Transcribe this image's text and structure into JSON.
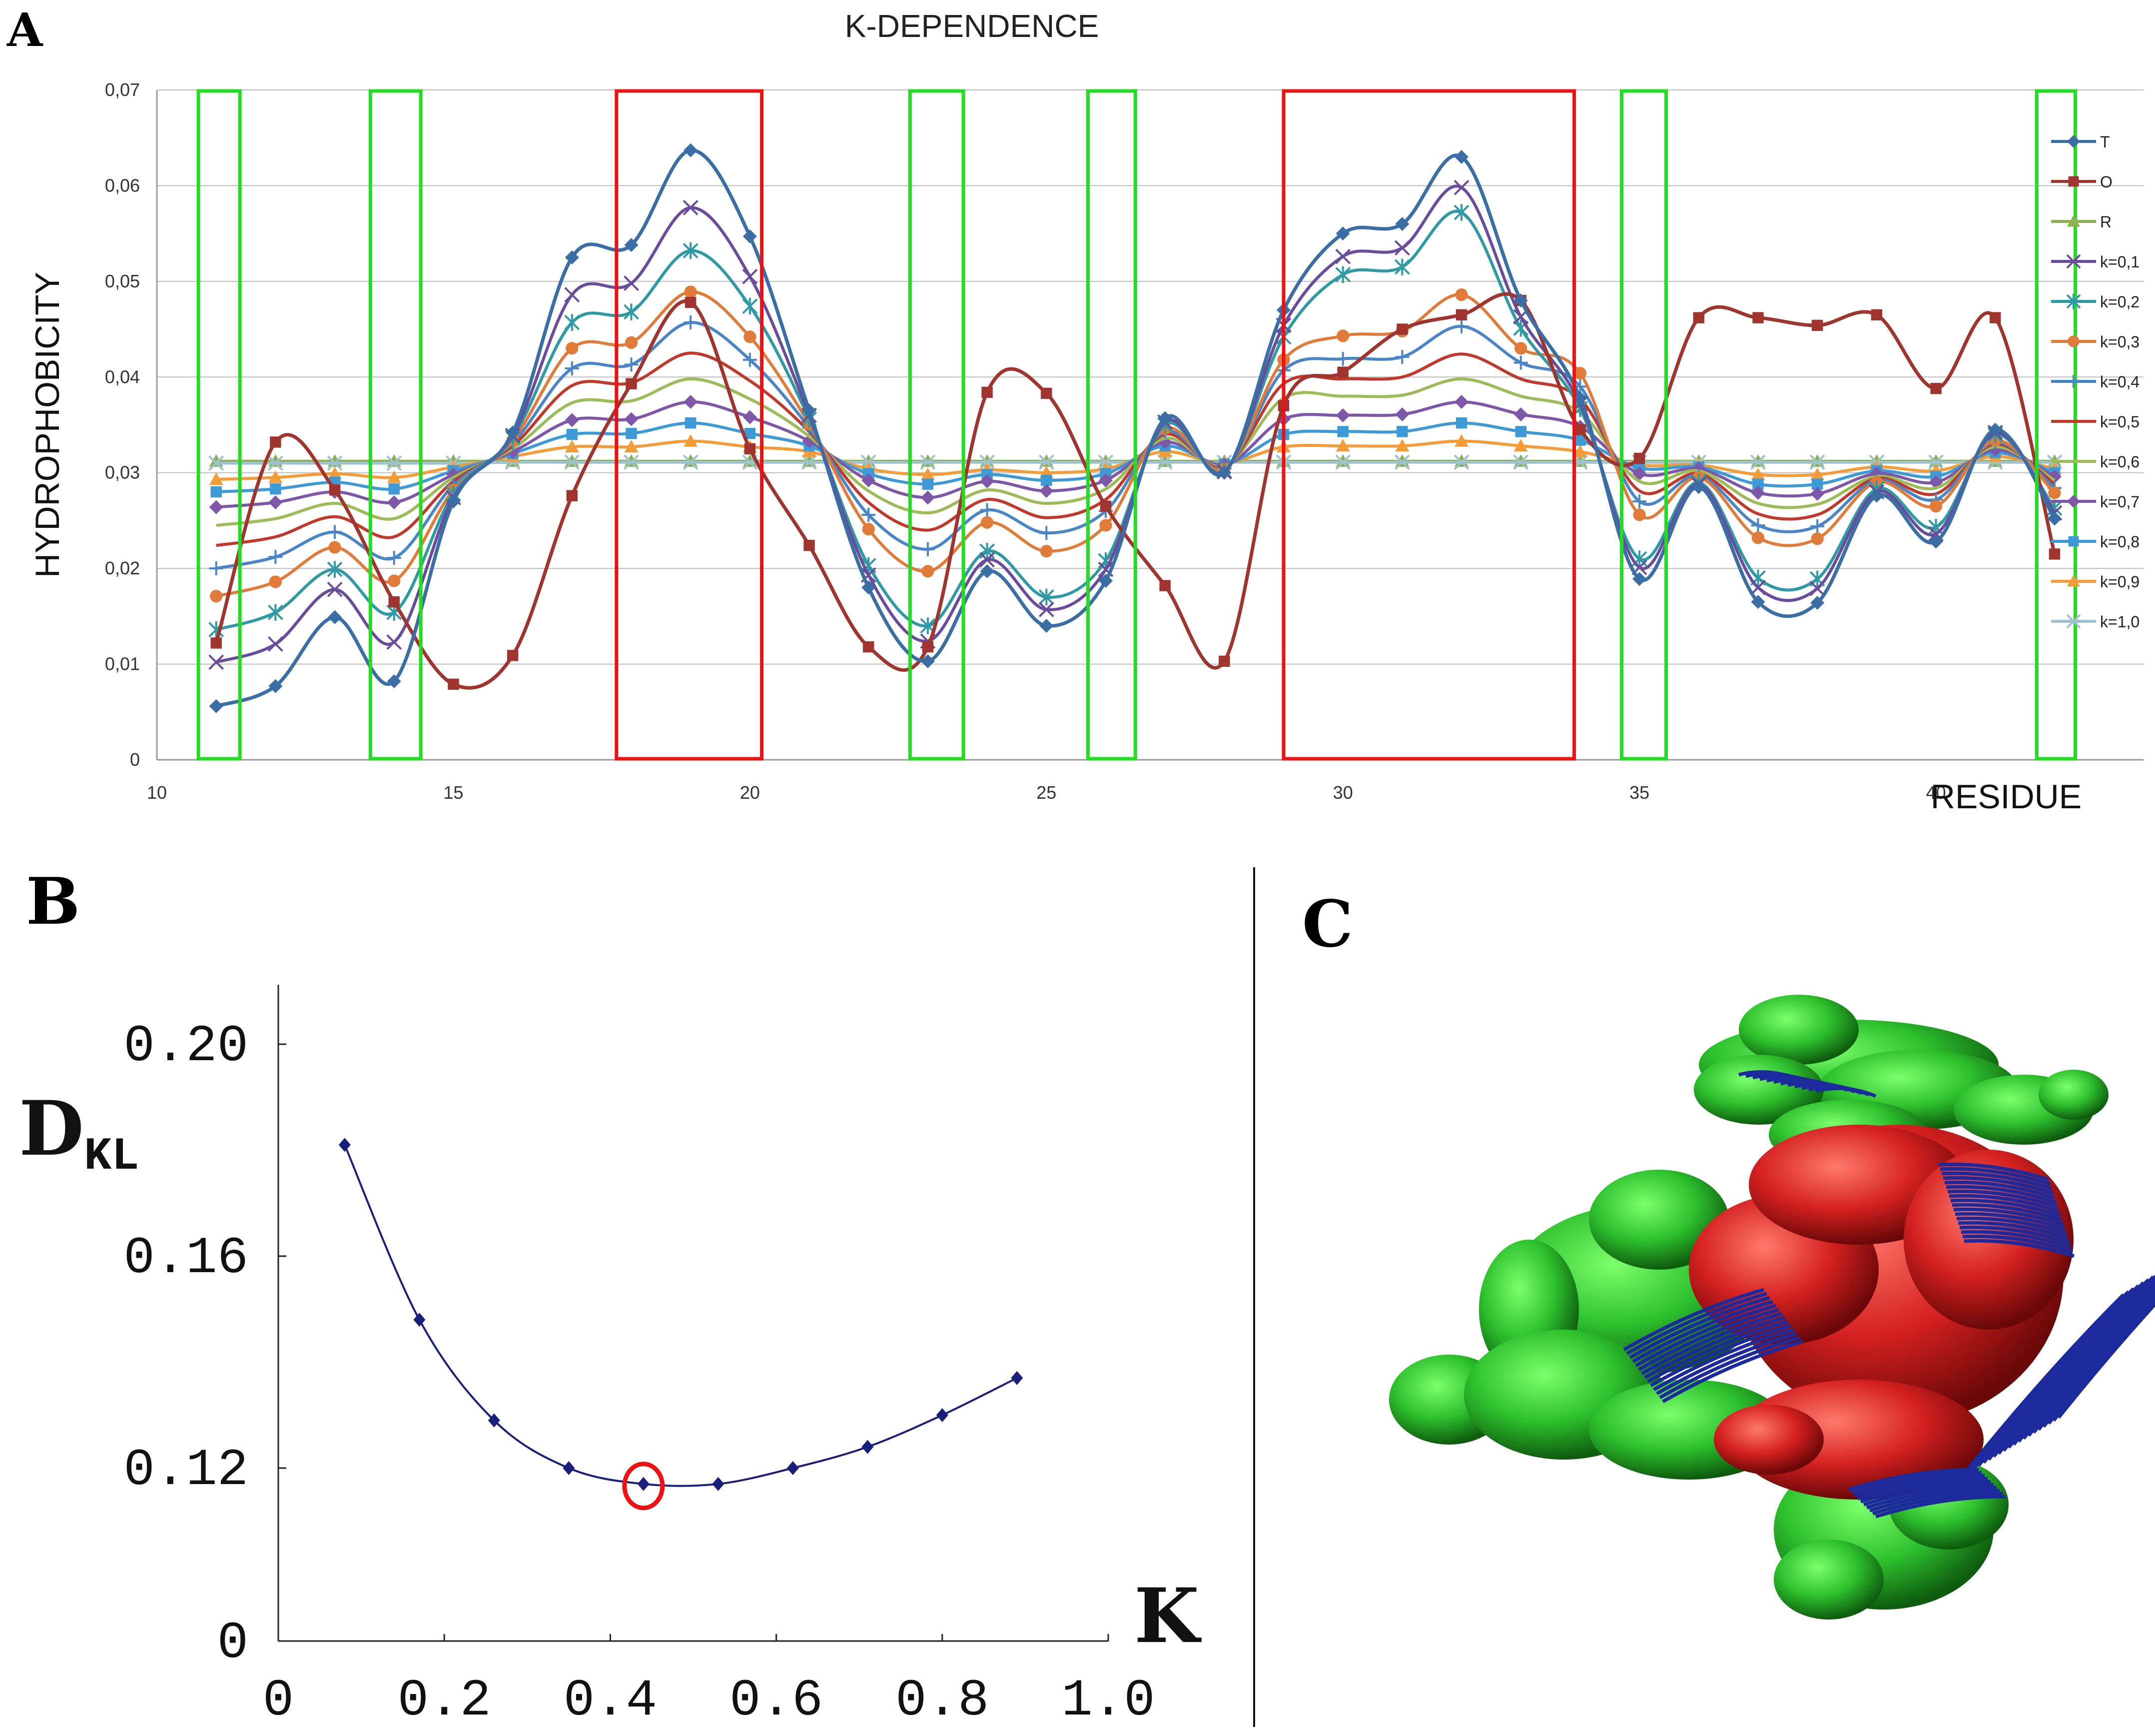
{
  "panels": {
    "a": {
      "letter": "A"
    },
    "b": {
      "letter": "B"
    },
    "c": {
      "letter": "C"
    }
  },
  "chart_data": [
    {
      "id": "k-dependence",
      "type": "line",
      "title": "K-DEPENDENCE",
      "xlabel": "RESIDUE",
      "ylabel": "HYDROPHOBICITY",
      "xlim": [
        10,
        43.5
      ],
      "ylim": [
        0,
        0.07
      ],
      "xticks": [
        10,
        15,
        20,
        25,
        30,
        35,
        40
      ],
      "xtick_labels": [
        "10",
        "15",
        "20",
        "25",
        "30",
        "35",
        "40"
      ],
      "yticks": [
        0,
        0.01,
        0.02,
        0.03,
        0.04,
        0.05,
        0.06,
        0.07
      ],
      "ytick_labels": [
        "0",
        "0,01",
        "0,02",
        "0,03",
        "0,04",
        "0,05",
        "0,06",
        "0,07"
      ],
      "grid": true,
      "legend_position": "right",
      "x": [
        11,
        12,
        13,
        14,
        15,
        16,
        17,
        18,
        19,
        20,
        21,
        22,
        23,
        24,
        25,
        26,
        27,
        28,
        29,
        30,
        31,
        32,
        33,
        34,
        35,
        36,
        37,
        38,
        39,
        40,
        41,
        42
      ],
      "series": [
        {
          "name": "T",
          "color": "#3a6ea5",
          "marker": "diamond",
          "values": [
            0.0056,
            0.0077,
            0.0149,
            0.0082,
            0.027,
            0.0342,
            0.0525,
            0.0538,
            0.0637,
            0.0547,
            0.0365,
            0.018,
            0.0103,
            0.0197,
            0.014,
            0.0187,
            0.0357,
            0.03,
            0.047,
            0.055,
            0.056,
            0.063,
            0.048,
            0.0378,
            0.0189,
            0.0285,
            0.0165,
            0.0164,
            0.0276,
            0.0228,
            0.0345,
            0.0252
          ]
        },
        {
          "name": "O",
          "color": "#a0342e",
          "marker": "square",
          "values": [
            0.0122,
            0.0332,
            0.0282,
            0.0165,
            0.0079,
            0.0109,
            0.0276,
            0.0393,
            0.0478,
            0.0325,
            0.0224,
            0.0118,
            0.0118,
            0.0384,
            0.0383,
            0.0265,
            0.0182,
            0.0103,
            0.037,
            0.0405,
            0.045,
            0.0465,
            0.048,
            0.0345,
            0.0315,
            0.0462,
            0.0462,
            0.0454,
            0.0465,
            0.0388,
            0.0462,
            0.0215
          ]
        },
        {
          "name": "R",
          "color": "#8db052",
          "marker": "triangle",
          "values": [
            0.0312,
            0.0312,
            0.0312,
            0.0312,
            0.0312,
            0.0312,
            0.0312,
            0.0312,
            0.0312,
            0.0312,
            0.0312,
            0.0312,
            0.0312,
            0.0312,
            0.0312,
            0.0312,
            0.0312,
            0.0312,
            0.0312,
            0.0312,
            0.0312,
            0.0312,
            0.0312,
            0.0312,
            0.0312,
            0.0312,
            0.0312,
            0.0312,
            0.0312,
            0.0312,
            0.0312,
            0.0312
          ]
        },
        {
          "name": "k=0,1",
          "color": "#6a4c9c",
          "marker": "x",
          "values": [
            0.0102,
            0.0121,
            0.0178,
            0.0123,
            0.0274,
            0.0339,
            0.0486,
            0.0498,
            0.0577,
            0.0505,
            0.036,
            0.0193,
            0.0124,
            0.0209,
            0.0157,
            0.0199,
            0.0353,
            0.0301,
            0.0454,
            0.0526,
            0.0535,
            0.0598,
            0.0463,
            0.0372,
            0.0201,
            0.0288,
            0.018,
            0.0179,
            0.028,
            0.0236,
            0.0342,
            0.0258
          ]
        },
        {
          "name": "k=0,2",
          "color": "#2f9aa3",
          "marker": "star",
          "values": [
            0.0136,
            0.0154,
            0.0199,
            0.0154,
            0.0278,
            0.0337,
            0.0457,
            0.0468,
            0.0532,
            0.0474,
            0.0356,
            0.0203,
            0.014,
            0.0218,
            0.017,
            0.0208,
            0.035,
            0.0302,
            0.0442,
            0.0507,
            0.0515,
            0.0572,
            0.0451,
            0.0367,
            0.021,
            0.029,
            0.019,
            0.0189,
            0.0283,
            0.0243,
            0.034,
            0.0263
          ]
        },
        {
          "name": "k=0,3",
          "color": "#e07b39",
          "marker": "circle",
          "values": [
            0.0171,
            0.0186,
            0.0222,
            0.0187,
            0.0282,
            0.0334,
            0.043,
            0.0436,
            0.0489,
            0.0442,
            0.0351,
            0.0241,
            0.0197,
            0.0248,
            0.0218,
            0.0245,
            0.0346,
            0.0304,
            0.0418,
            0.0443,
            0.0448,
            0.0486,
            0.043,
            0.0404,
            0.0256,
            0.0295,
            0.0232,
            0.0231,
            0.029,
            0.0265,
            0.0334,
            0.0279
          ]
        },
        {
          "name": "k=0,4",
          "color": "#4a86c7",
          "marker": "plus",
          "values": [
            0.02,
            0.0212,
            0.0238,
            0.0211,
            0.0287,
            0.0331,
            0.0409,
            0.0413,
            0.0457,
            0.0418,
            0.0347,
            0.0256,
            0.022,
            0.0261,
            0.0237,
            0.026,
            0.0343,
            0.0305,
            0.0407,
            0.0419,
            0.0421,
            0.0453,
            0.0415,
            0.039,
            0.027,
            0.0297,
            0.0245,
            0.0244,
            0.0292,
            0.0272,
            0.0332,
            0.0284
          ]
        },
        {
          "name": "k=0,5",
          "color": "#c0392b",
          "marker": "none",
          "values": [
            0.0224,
            0.0233,
            0.0254,
            0.0233,
            0.0291,
            0.0328,
            0.0391,
            0.0394,
            0.0425,
            0.0396,
            0.0343,
            0.0269,
            0.024,
            0.0272,
            0.0253,
            0.0272,
            0.034,
            0.0306,
            0.0393,
            0.0398,
            0.04,
            0.0424,
            0.0398,
            0.0377,
            0.0281,
            0.0299,
            0.0257,
            0.0256,
            0.0294,
            0.0278,
            0.033,
            0.0288
          ]
        },
        {
          "name": "k=0,6",
          "color": "#9cbb59",
          "marker": "none",
          "values": [
            0.0245,
            0.0252,
            0.0268,
            0.0252,
            0.0295,
            0.0325,
            0.0373,
            0.0375,
            0.0398,
            0.0377,
            0.0338,
            0.0281,
            0.0258,
            0.0282,
            0.0268,
            0.0283,
            0.0336,
            0.0307,
            0.0378,
            0.038,
            0.0381,
            0.0398,
            0.038,
            0.0363,
            0.0291,
            0.0302,
            0.0268,
            0.0267,
            0.0296,
            0.0284,
            0.0327,
            0.0292
          ]
        },
        {
          "name": "k=0,7",
          "color": "#7e57a8",
          "marker": "diamond",
          "values": [
            0.0264,
            0.0269,
            0.028,
            0.0269,
            0.0298,
            0.0322,
            0.0355,
            0.0356,
            0.0374,
            0.0358,
            0.0333,
            0.0292,
            0.0274,
            0.0291,
            0.0281,
            0.0292,
            0.0332,
            0.0308,
            0.0356,
            0.036,
            0.0361,
            0.0374,
            0.0361,
            0.0348,
            0.0299,
            0.0304,
            0.0279,
            0.0278,
            0.0299,
            0.029,
            0.0324,
            0.0296
          ]
        },
        {
          "name": "k=0,8",
          "color": "#3d9ad6",
          "marker": "square",
          "values": [
            0.028,
            0.0283,
            0.029,
            0.0283,
            0.0302,
            0.032,
            0.034,
            0.0341,
            0.0352,
            0.0341,
            0.0328,
            0.0299,
            0.0288,
            0.0298,
            0.0292,
            0.0299,
            0.0328,
            0.0309,
            0.034,
            0.0343,
            0.0343,
            0.0352,
            0.0343,
            0.0334,
            0.0305,
            0.0306,
            0.0288,
            0.0288,
            0.0302,
            0.0296,
            0.0321,
            0.03
          ]
        },
        {
          "name": "k=0,9",
          "color": "#f39c3a",
          "marker": "triangle",
          "values": [
            0.0293,
            0.0295,
            0.0299,
            0.0295,
            0.0306,
            0.0317,
            0.0327,
            0.0327,
            0.0333,
            0.0327,
            0.0322,
            0.0304,
            0.0298,
            0.0303,
            0.03,
            0.0304,
            0.0322,
            0.031,
            0.0327,
            0.0328,
            0.0328,
            0.0333,
            0.0328,
            0.0322,
            0.0308,
            0.0308,
            0.0298,
            0.0298,
            0.0306,
            0.0302,
            0.0317,
            0.0304
          ]
        },
        {
          "name": "k=1,0",
          "color": "#9ec3cf",
          "marker": "x",
          "values": [
            0.031,
            0.031,
            0.031,
            0.031,
            0.031,
            0.0311,
            0.0311,
            0.0311,
            0.0311,
            0.0311,
            0.0311,
            0.0311,
            0.0311,
            0.0311,
            0.0311,
            0.0311,
            0.0311,
            0.0311,
            0.0311,
            0.0311,
            0.0311,
            0.0311,
            0.0311,
            0.0311,
            0.0311,
            0.0311,
            0.0311,
            0.0311,
            0.0311,
            0.0311,
            0.0311,
            0.0311
          ]
        }
      ],
      "highlight_regions": [
        {
          "from": 10.7,
          "to": 11.4,
          "color": "#22dd22"
        },
        {
          "from": 13.6,
          "to": 14.45,
          "color": "#22dd22"
        },
        {
          "from": 17.75,
          "to": 20.2,
          "color": "#ee1111"
        },
        {
          "from": 22.7,
          "to": 23.6,
          "color": "#22dd22"
        },
        {
          "from": 25.7,
          "to": 26.5,
          "color": "#22dd22"
        },
        {
          "from": 29.0,
          "to": 33.9,
          "color": "#ee1111"
        },
        {
          "from": 34.7,
          "to": 35.45,
          "color": "#22dd22"
        },
        {
          "from": 41.7,
          "to": 42.35,
          "color": "#22dd22"
        }
      ]
    },
    {
      "id": "dkl-vs-k",
      "type": "line",
      "title": "",
      "ylabel_main": "D",
      "ylabel_sub": "KL",
      "xlabel": "K",
      "xlim": [
        0,
        1.0
      ],
      "ylim": [
        0,
        0.22
      ],
      "xticks": [
        0,
        0.2,
        0.4,
        0.6,
        0.8,
        1.0
      ],
      "xtick_labels": [
        "0",
        "0.2",
        "0.4",
        "0.6",
        "0.8",
        "1.0"
      ],
      "yticks": [
        0,
        0.12,
        0.16,
        0.2
      ],
      "ytick_labels": [
        "0",
        "0.12",
        "0.16",
        "0.20"
      ],
      "axis_break": true,
      "color": "#1a1f7a",
      "x": [
        0.08,
        0.17,
        0.26,
        0.35,
        0.44,
        0.53,
        0.62,
        0.71,
        0.8,
        0.89
      ],
      "y": [
        0.181,
        0.148,
        0.129,
        0.12,
        0.117,
        0.117,
        0.12,
        0.124,
        0.13,
        0.137
      ],
      "highlight_point_index": 4,
      "highlight_color": "#ee1111"
    }
  ],
  "structure_colors": {
    "outer_surface": "#2ec12e",
    "core_surface": "#d42020",
    "strands": "#1c2a9c"
  }
}
